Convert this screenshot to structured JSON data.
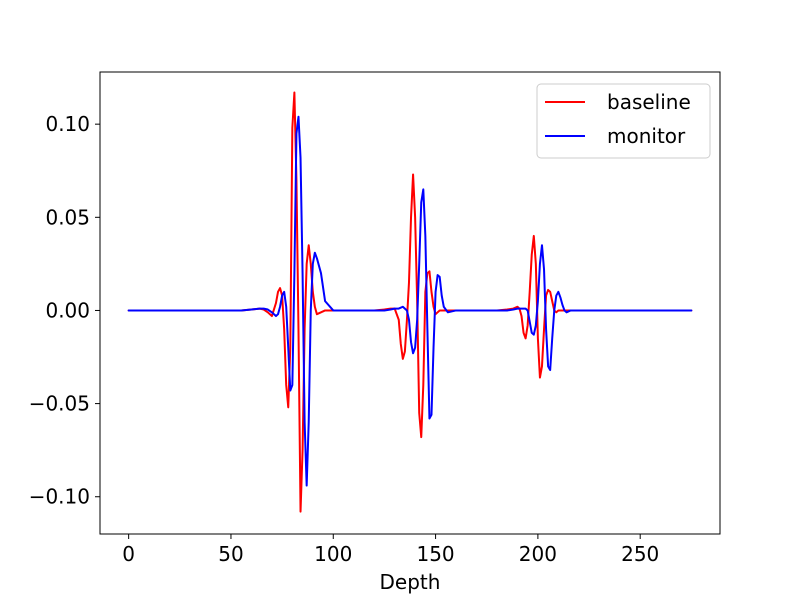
{
  "chart_data": {
    "type": "line",
    "title": "",
    "xlabel": "Depth",
    "ylabel": "",
    "xlim": [
      -14,
      289
    ],
    "ylim": [
      -0.12,
      0.128
    ],
    "xticks": [
      0,
      50,
      100,
      150,
      200,
      250
    ],
    "xtick_labels": [
      "0",
      "50",
      "100",
      "150",
      "200",
      "250"
    ],
    "yticks": [
      -0.1,
      -0.05,
      0.0,
      0.05,
      0.1
    ],
    "ytick_labels": [
      "−0.10",
      "−0.05",
      "0.00",
      "0.05",
      "0.10"
    ],
    "grid": false,
    "legend_position": "upper right",
    "series": [
      {
        "name": "baseline",
        "color": "#ff0000",
        "x": [
          0,
          40,
          55,
          60,
          64,
          66,
          68,
          70,
          72,
          73,
          74,
          75,
          76,
          77,
          78,
          79,
          80,
          81,
          82,
          83,
          84,
          85,
          86,
          87,
          88,
          89,
          90,
          91,
          92,
          94,
          96,
          100,
          110,
          120,
          125,
          128,
          130,
          132,
          133,
          134,
          135,
          136,
          137,
          138,
          139,
          140,
          141,
          142,
          143,
          144,
          145,
          146,
          147,
          148,
          149,
          150,
          151,
          152,
          154,
          156,
          160,
          170,
          180,
          185,
          188,
          190,
          191,
          192,
          193,
          194,
          195,
          196,
          197,
          198,
          199,
          200,
          201,
          202,
          203,
          204,
          205,
          206,
          207,
          208,
          209,
          210,
          212,
          214,
          220,
          240,
          260,
          275
        ],
        "y": [
          0,
          0,
          0,
          0.0005,
          0.001,
          0.0005,
          -0.001,
          -0.003,
          0.004,
          0.01,
          0.012,
          0.008,
          -0.01,
          -0.04,
          -0.052,
          -0.02,
          0.098,
          0.117,
          0.07,
          -0.01,
          -0.108,
          -0.075,
          -0.01,
          0.025,
          0.035,
          0.025,
          0.01,
          0.002,
          -0.002,
          -0.001,
          0,
          0,
          0,
          0,
          0.0005,
          0.001,
          0.001,
          -0.005,
          -0.018,
          -0.026,
          -0.022,
          -0.005,
          0.015,
          0.05,
          0.073,
          0.05,
          0.005,
          -0.055,
          -0.068,
          -0.04,
          0.01,
          0.02,
          0.021,
          0.01,
          0.002,
          -0.002,
          -0.001,
          0,
          0,
          0,
          0,
          0,
          0,
          0.0005,
          0.001,
          0.002,
          0.001,
          -0.003,
          -0.012,
          -0.015,
          -0.008,
          0.01,
          0.03,
          0.04,
          0.025,
          -0.015,
          -0.036,
          -0.03,
          -0.01,
          0.008,
          0.011,
          0.01,
          0.005,
          0,
          -0.001,
          0,
          0,
          0,
          0,
          0,
          0,
          0
        ]
      },
      {
        "name": "monitor",
        "color": "#0000ff",
        "x": [
          0,
          40,
          55,
          60,
          64,
          66,
          68,
          70,
          72,
          73,
          74,
          75,
          76,
          77,
          78,
          79,
          80,
          81,
          82,
          83,
          84,
          85,
          86,
          87,
          88,
          89,
          90,
          91,
          92,
          94,
          96,
          100,
          110,
          120,
          125,
          128,
          130,
          132,
          134,
          136,
          137,
          138,
          139,
          140,
          141,
          142,
          143,
          144,
          145,
          146,
          147,
          148,
          149,
          150,
          151,
          152,
          153,
          154,
          156,
          160,
          170,
          180,
          185,
          188,
          190,
          192,
          194,
          195,
          196,
          197,
          198,
          199,
          200,
          201,
          202,
          203,
          204,
          205,
          206,
          207,
          208,
          209,
          210,
          211,
          212,
          213,
          214,
          216,
          220,
          240,
          260,
          275
        ],
        "y": [
          0,
          0,
          0,
          0.0005,
          0.001,
          0.001,
          0.0005,
          -0.001,
          -0.003,
          -0.002,
          0.002,
          0.008,
          0.01,
          0.002,
          -0.02,
          -0.043,
          -0.04,
          0.02,
          0.095,
          0.104,
          0.082,
          0.02,
          -0.06,
          -0.094,
          -0.06,
          0.0,
          0.025,
          0.031,
          0.028,
          0.02,
          0.005,
          0,
          0,
          0,
          0,
          0.0005,
          0.001,
          0.001,
          0.002,
          0.0,
          -0.005,
          -0.017,
          -0.023,
          -0.02,
          -0.005,
          0.025,
          0.058,
          0.065,
          0.04,
          -0.01,
          -0.058,
          -0.056,
          -0.02,
          0.01,
          0.019,
          0.018,
          0.008,
          0.002,
          -0.001,
          0,
          0,
          0,
          0,
          0.0005,
          0.001,
          0.001,
          0.001,
          0.0,
          -0.006,
          -0.012,
          -0.013,
          -0.008,
          0.005,
          0.025,
          0.035,
          0.022,
          -0.01,
          -0.03,
          -0.032,
          -0.015,
          0.0,
          0.008,
          0.01,
          0.007,
          0.003,
          0.0,
          -0.001,
          0,
          0,
          0,
          0,
          0
        ]
      }
    ]
  }
}
